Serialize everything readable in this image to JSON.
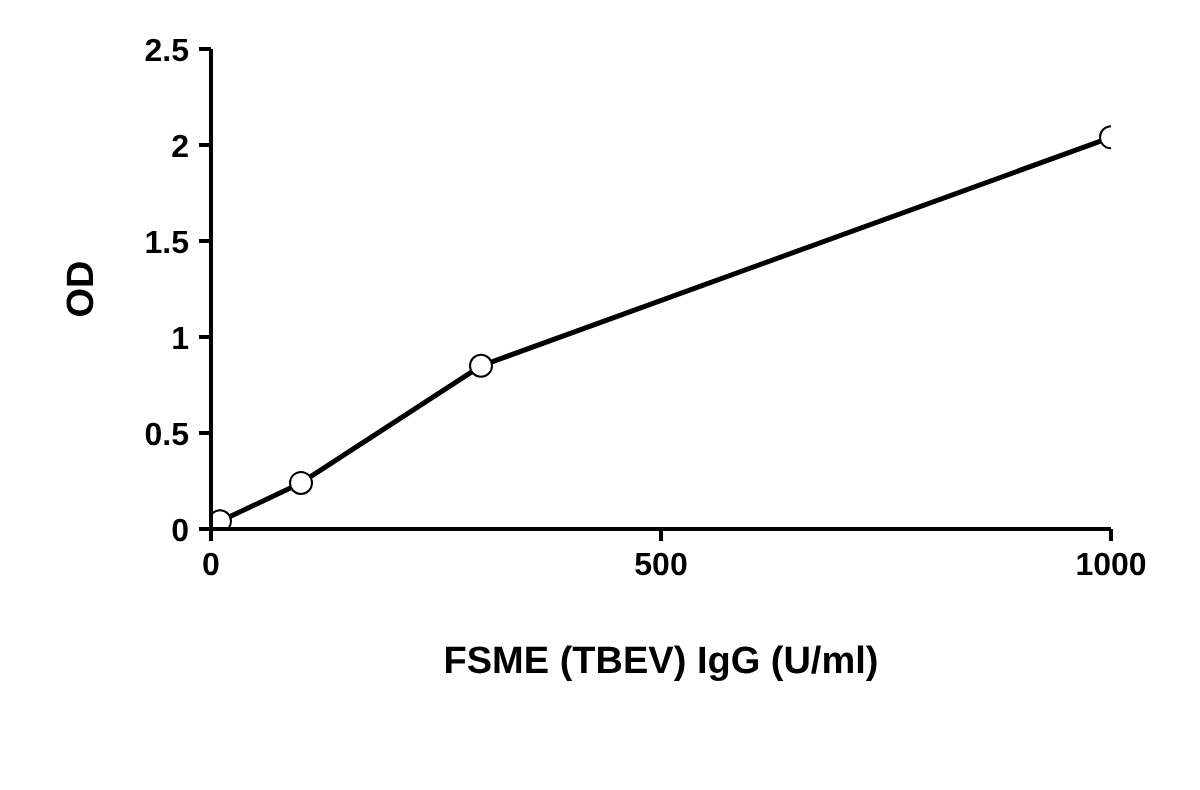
{
  "chart_data": {
    "type": "line",
    "xlabel": "FSME (TBEV) IgG (U/ml)",
    "ylabel": "OD",
    "x": [
      0,
      10,
      100,
      300,
      1000
    ],
    "series": [
      {
        "color": "#000000",
        "values": [
          0.01,
          0.04,
          0.24,
          0.85,
          2.04
        ]
      }
    ],
    "xlim": [
      0,
      1000
    ],
    "xticks": [
      0,
      500,
      1000
    ],
    "ylim": [
      0,
      2.5
    ],
    "yticks": [
      0,
      0.5,
      1,
      1.5,
      2,
      2.5
    ],
    "marker": "circle",
    "line_style": "solid",
    "grid": false
  }
}
